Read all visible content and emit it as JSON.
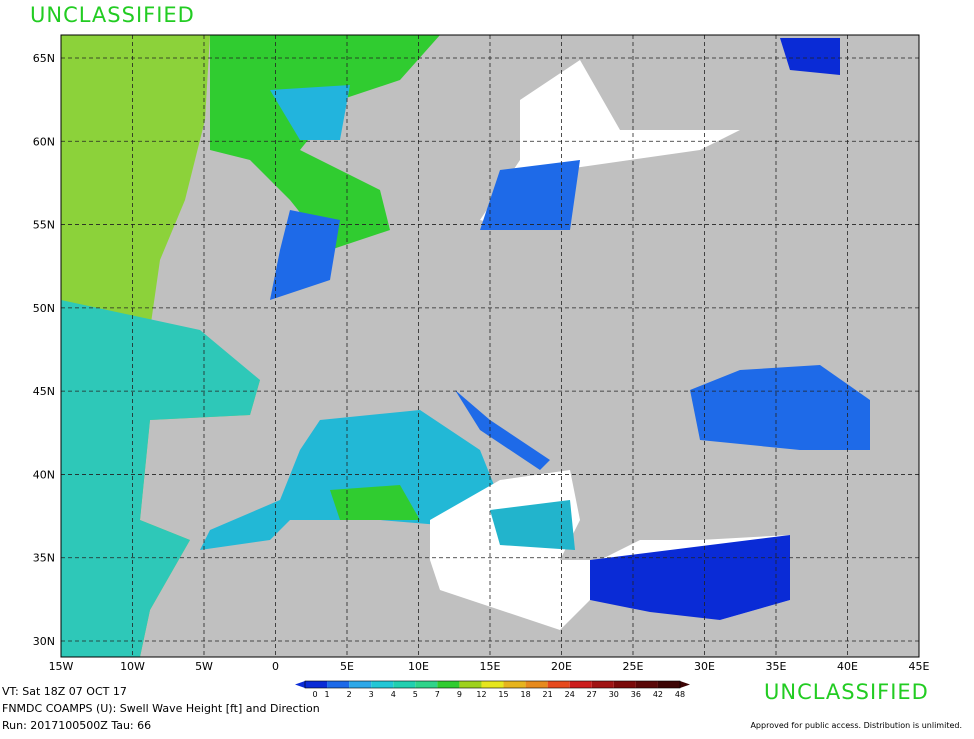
{
  "header": {
    "classification": "UNCLASSIFIED"
  },
  "map": {
    "lon_labels": [
      "15W",
      "10W",
      "5W",
      "0",
      "5E",
      "10E",
      "15E",
      "20E",
      "25E",
      "30E",
      "35E",
      "40E",
      "45E"
    ],
    "lat_labels": [
      "65N",
      "60N",
      "55N",
      "50N",
      "45N",
      "40N",
      "35N",
      "30N"
    ]
  },
  "colorbar": {
    "labels": [
      "0",
      "1",
      "2",
      "3",
      "4",
      "5",
      "7",
      "9",
      "12",
      "15",
      "18",
      "21",
      "24",
      "27",
      "30",
      "36",
      "42",
      "48"
    ],
    "colors": [
      "#0a2bd6",
      "#1e6ae8",
      "#2ea8e8",
      "#22c7d6",
      "#22d0b0",
      "#2fd48a",
      "#30cc30",
      "#9ed21e",
      "#e6e61e",
      "#e6b41e",
      "#e68a1e",
      "#e64a1e",
      "#cc1e1e",
      "#a01414",
      "#7a0a0a",
      "#5a0808",
      "#3c0404"
    ]
  },
  "footer": {
    "vt": "VT: Sat 18Z 07 OCT 17",
    "model": "FNMDC COAMPS (U): Swell Wave Height [ft] and Direction",
    "run": "Run: 2017100500Z Tau: 66",
    "classification": "UNCLASSIFIED",
    "disclaimer": "Approved for public access. Distribution is unlimited."
  }
}
